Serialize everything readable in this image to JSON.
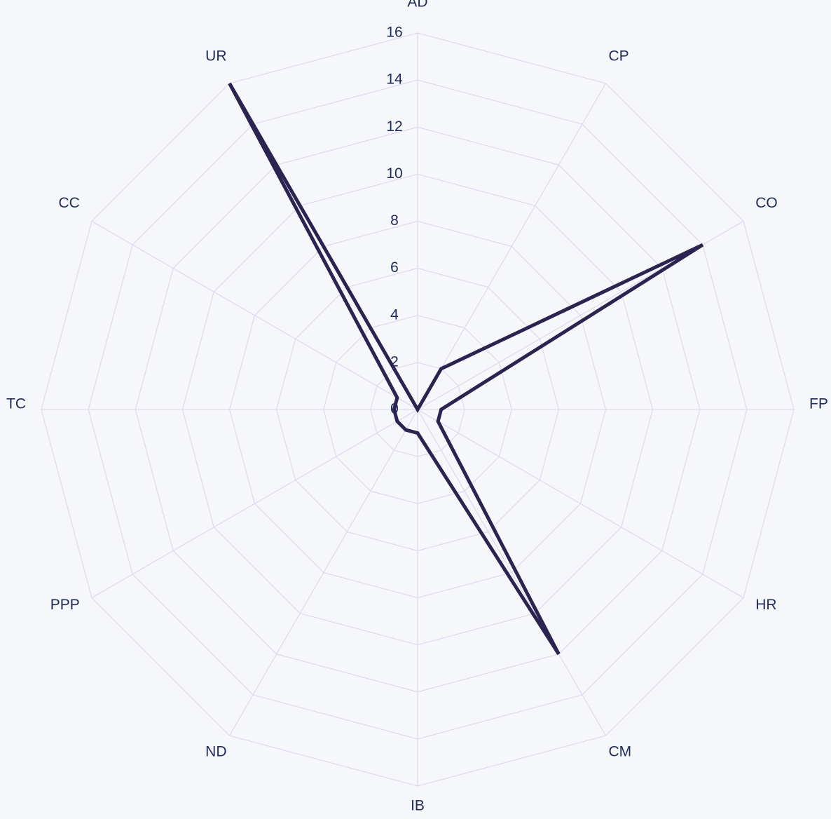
{
  "chart_data": {
    "type": "radar",
    "axes": [
      "AD",
      "CP",
      "CO",
      "FP",
      "HR",
      "CM",
      "IB",
      "ND",
      "PPP",
      "TC",
      "CC",
      "UR"
    ],
    "series": [
      {
        "values": [
          0,
          2,
          14,
          1,
          1,
          12,
          1,
          1,
          1,
          1,
          1,
          16
        ]
      }
    ],
    "radial_ticks": [
      "0",
      "2",
      "4",
      "6",
      "8",
      "10",
      "12",
      "14",
      "16"
    ],
    "r_range": [
      0,
      16
    ],
    "grid": true,
    "colors": {
      "line": "#2b2450",
      "grid": "#e3d9ee",
      "text": "#1f2a5a",
      "background": "#f6f7fb"
    }
  }
}
